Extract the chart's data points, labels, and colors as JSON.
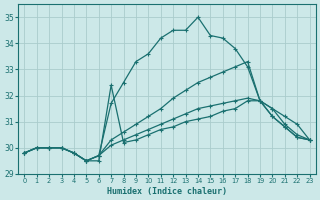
{
  "xlabel": "Humidex (Indice chaleur)",
  "background_color": "#cce8e8",
  "grid_color": "#aacccc",
  "line_color": "#1a7070",
  "xlim": [
    -0.5,
    23.5
  ],
  "ylim": [
    29.0,
    35.5
  ],
  "yticks": [
    29,
    30,
    31,
    32,
    33,
    34,
    35
  ],
  "xticks": [
    0,
    1,
    2,
    3,
    4,
    5,
    6,
    7,
    8,
    9,
    10,
    11,
    12,
    13,
    14,
    15,
    16,
    17,
    18,
    19,
    20,
    21,
    22,
    23
  ],
  "lines": [
    {
      "x": [
        0,
        1,
        2,
        3,
        4,
        5,
        6,
        7,
        8,
        9,
        10,
        11,
        12,
        13,
        14,
        15,
        16,
        17,
        18,
        19,
        20,
        21,
        22,
        23
      ],
      "y": [
        29.8,
        30.0,
        30.0,
        30.0,
        29.8,
        29.5,
        29.7,
        31.7,
        32.5,
        33.3,
        33.6,
        34.2,
        34.5,
        34.5,
        35.0,
        34.3,
        34.2,
        33.8,
        33.1,
        31.8,
        31.2,
        30.8,
        30.4,
        30.3
      ]
    },
    {
      "x": [
        0,
        1,
        2,
        3,
        4,
        5,
        6,
        7,
        8,
        9,
        10,
        11,
        12,
        13,
        14,
        15,
        16,
        17,
        18,
        19,
        20,
        21,
        22,
        23
      ],
      "y": [
        29.8,
        30.0,
        30.0,
        30.0,
        29.8,
        29.5,
        29.7,
        30.3,
        30.6,
        30.9,
        31.2,
        31.5,
        31.9,
        32.2,
        32.5,
        32.7,
        32.9,
        33.1,
        33.3,
        31.8,
        31.5,
        30.9,
        30.5,
        30.3
      ]
    },
    {
      "x": [
        0,
        1,
        2,
        3,
        4,
        5,
        6,
        7,
        8,
        9,
        10,
        11,
        12,
        13,
        14,
        15,
        16,
        17,
        18,
        19,
        20,
        21,
        22,
        23
      ],
      "y": [
        29.8,
        30.0,
        30.0,
        30.0,
        29.8,
        29.5,
        29.7,
        30.1,
        30.3,
        30.5,
        30.7,
        30.9,
        31.1,
        31.3,
        31.5,
        31.6,
        31.7,
        31.8,
        31.9,
        31.8,
        31.5,
        31.2,
        30.9,
        30.3
      ]
    },
    {
      "x": [
        0,
        1,
        2,
        3,
        4,
        5,
        6,
        7,
        8,
        9,
        10,
        11,
        12,
        13,
        14,
        15,
        16,
        17,
        18,
        19,
        20,
        21,
        22,
        23
      ],
      "y": [
        29.8,
        30.0,
        30.0,
        30.0,
        29.8,
        29.5,
        29.5,
        32.4,
        30.2,
        30.3,
        30.5,
        30.7,
        30.8,
        31.0,
        31.1,
        31.2,
        31.4,
        31.5,
        31.8,
        31.8,
        31.2,
        30.8,
        30.4,
        30.3
      ]
    }
  ]
}
